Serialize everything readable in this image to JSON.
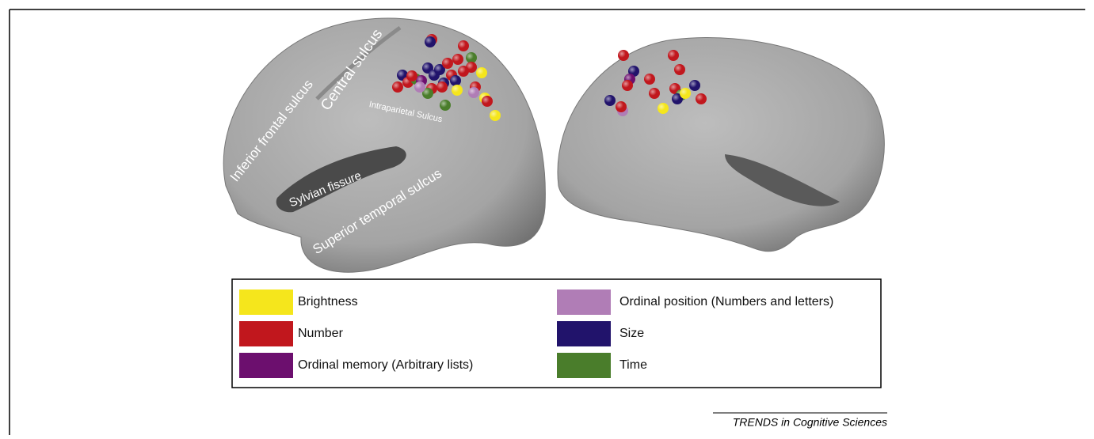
{
  "brain_labels": [
    "Inferior frontal sulcus",
    "Central sulcus",
    "Intraparietal Sulcus",
    "Sylvian fissure",
    "Superior temporal sulcus"
  ],
  "legend": [
    {
      "label": "Brightness",
      "color": "#f5e61c"
    },
    {
      "label": "Number",
      "color": "#c1171d"
    },
    {
      "label": "Ordinal memory (Arbitrary lists)",
      "color": "#6c0f6e"
    },
    {
      "label": "Ordinal position (Numbers and letters)",
      "color": "#b07db6"
    },
    {
      "label": "Size",
      "color": "#21136b"
    },
    {
      "label": "Time",
      "color": "#4a7d2b"
    }
  ],
  "source": "TRENDS in Cognitive Sciences"
}
